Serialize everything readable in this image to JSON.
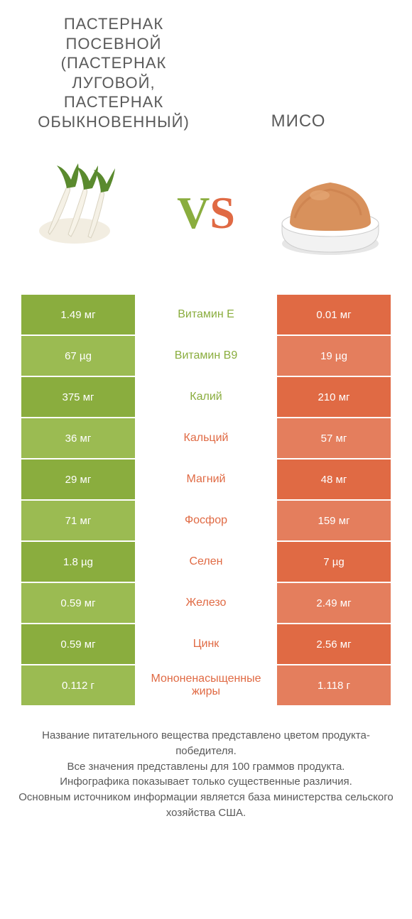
{
  "colors": {
    "green_main": "#8aad3e",
    "green_alt": "#9bbb52",
    "orange_main": "#e06a44",
    "orange_alt": "#e47e5d",
    "mid_bg": "#ffffff",
    "text_dark": "#5a5a5a"
  },
  "header": {
    "left": "ПАСТЕРНАК ПОСЕВНОЙ (ПАСТЕРНАК ЛУГОВОЙ, ПАСТЕРНАК ОБЫКНОВЕННЫЙ)",
    "right": "МИСО"
  },
  "vs": {
    "v": "V",
    "s": "S"
  },
  "rows": [
    {
      "label": "Витамин E",
      "left": "1.49 мг",
      "right": "0.01 мг",
      "winner": "left"
    },
    {
      "label": "Витамин B9",
      "left": "67 µg",
      "right": "19 µg",
      "winner": "left"
    },
    {
      "label": "Калий",
      "left": "375 мг",
      "right": "210 мг",
      "winner": "left"
    },
    {
      "label": "Кальций",
      "left": "36 мг",
      "right": "57 мг",
      "winner": "right"
    },
    {
      "label": "Магний",
      "left": "29 мг",
      "right": "48 мг",
      "winner": "right"
    },
    {
      "label": "Фосфор",
      "left": "71 мг",
      "right": "159 мг",
      "winner": "right"
    },
    {
      "label": "Селен",
      "left": "1.8 µg",
      "right": "7 µg",
      "winner": "right"
    },
    {
      "label": "Железо",
      "left": "0.59 мг",
      "right": "2.49 мг",
      "winner": "right"
    },
    {
      "label": "Цинк",
      "left": "0.59 мг",
      "right": "2.56 мг",
      "winner": "right"
    },
    {
      "label": "Мононенасыщенные жиры",
      "left": "0.112 г",
      "right": "1.118 г",
      "winner": "right"
    }
  ],
  "footer": {
    "line1": "Название питательного вещества представлено цветом продукта-победителя.",
    "line2": "Все значения представлены для 100 граммов продукта.",
    "line3": "Инфографика показывает только существенные различия.",
    "line4": "Основным источником информации является база министерства сельского хозяйства США."
  }
}
